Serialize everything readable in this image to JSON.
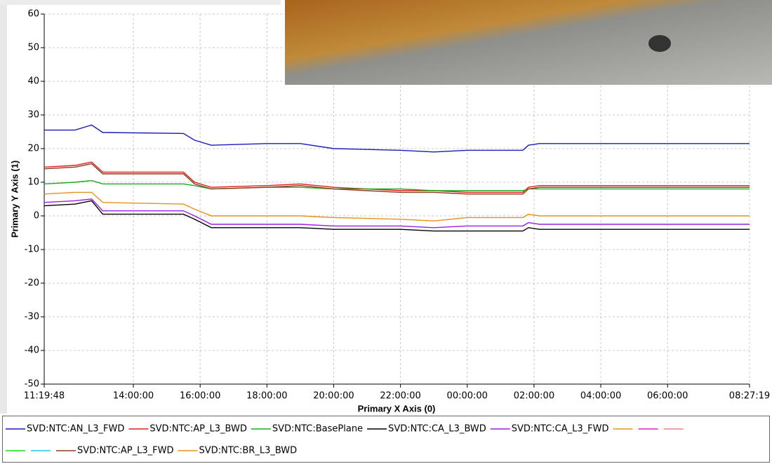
{
  "chart_data": {
    "type": "line",
    "x_label": "Primary X Axis (0)",
    "y_label": "Primary Y Axis (1)",
    "x": [
      "11:19:48",
      "12:15:00",
      "12:45:00",
      "13:05:00",
      "15:30:00",
      "15:50:00",
      "16:20:00",
      "18:00:00",
      "19:00:00",
      "20:00:00",
      "22:00:00",
      "23:00:00",
      "00:00:00",
      "01:40:00",
      "01:50:00",
      "02:10:00",
      "04:00:00",
      "06:00:00",
      "08:27:19"
    ],
    "xlim": [
      "11:19:48",
      "08:27:19"
    ],
    "xticks": [
      "11:19:48",
      "14:00:00",
      "16:00:00",
      "18:00:00",
      "20:00:00",
      "22:00:00",
      "00:00:00",
      "02:00:00",
      "04:00:00",
      "06:00:00",
      "08:27:19"
    ],
    "ylim": [
      -50,
      60
    ],
    "yticks": [
      -50,
      -40,
      -30,
      -20,
      -10,
      0,
      10,
      20,
      30,
      40,
      50,
      60
    ],
    "grid": true,
    "series": [
      {
        "name": "SVD:NTC:AN_L3_FWD",
        "color": "#1a1ab8",
        "values": [
          25.5,
          25.5,
          27,
          24.8,
          24.5,
          22.5,
          21,
          21.5,
          21.5,
          20,
          19.5,
          19,
          19.5,
          19.5,
          21,
          21.5,
          21.5,
          21.5,
          21.5
        ]
      },
      {
        "name": "SVD:NTC:AP_L3_BWD",
        "color": "#e01c1c",
        "values": [
          14.5,
          15,
          16,
          13,
          13,
          10,
          8.5,
          9,
          9.5,
          8.5,
          7.5,
          7.5,
          7,
          7,
          8.5,
          9,
          9,
          9,
          9
        ]
      },
      {
        "name": "SVD:NTC:BasePlane",
        "color": "#1fa81f",
        "values": [
          9.5,
          10,
          10.5,
          9.5,
          9.5,
          9,
          8,
          8.5,
          8.5,
          8,
          8,
          7.5,
          7.5,
          7.5,
          8,
          8,
          8,
          8,
          8
        ]
      },
      {
        "name": "SVD:NTC:CA_L3_BWD",
        "color": "#000000",
        "values": [
          3,
          3.5,
          4.5,
          0.5,
          0.5,
          -1,
          -3.5,
          -3.5,
          -3.5,
          -4,
          -4,
          -4.5,
          -4.5,
          -4.5,
          -3.5,
          -4,
          -4,
          -4,
          -4
        ]
      },
      {
        "name": "SVD:NTC:CA_L3_FWD",
        "color": "#9b1fe0",
        "values": [
          4,
          4.5,
          5,
          1.5,
          1.5,
          0,
          -2.5,
          -2.5,
          -2.5,
          -3,
          -3,
          -3.5,
          -3,
          -3,
          -2,
          -2.5,
          -2.5,
          -2.5,
          -2.5
        ]
      },
      {
        "name": "SVD:NTC:AP_L3_FWD",
        "color": "#8b3a1a",
        "values": [
          14,
          14.5,
          15.5,
          12.5,
          12.5,
          9.5,
          8,
          8.5,
          9,
          8,
          7,
          7,
          6.5,
          6.5,
          8,
          8.5,
          8.5,
          8.5,
          8.5
        ]
      },
      {
        "name": "SVD:NTC:BR_L3_BWD",
        "color": "#e8901c",
        "values": [
          6.5,
          7,
          7,
          4,
          3.5,
          2,
          0,
          0,
          0,
          -0.5,
          -1,
          -1.5,
          -0.5,
          -0.5,
          0.5,
          0,
          0,
          0,
          0
        ]
      }
    ]
  }
}
